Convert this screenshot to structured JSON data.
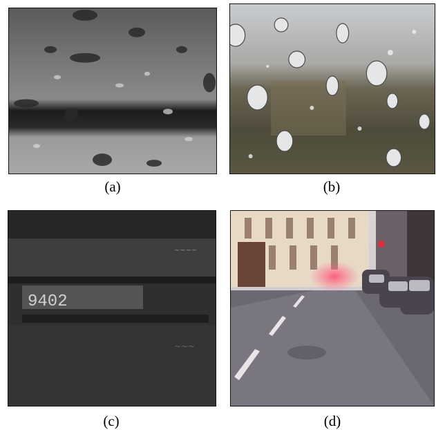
{
  "captions": {
    "a": "(a)",
    "b": "(b)",
    "c": "(c)",
    "d": "(d)"
  },
  "panels": {
    "a": {
      "subject": "raindrops on window, grayscale"
    },
    "b": {
      "subject": "raindrops on window over blurred scene"
    },
    "c": {
      "subject": "grayscale display panel with digits",
      "display_text": "9402"
    },
    "d": {
      "subject": "blurry street scene through wet windshield"
    }
  }
}
